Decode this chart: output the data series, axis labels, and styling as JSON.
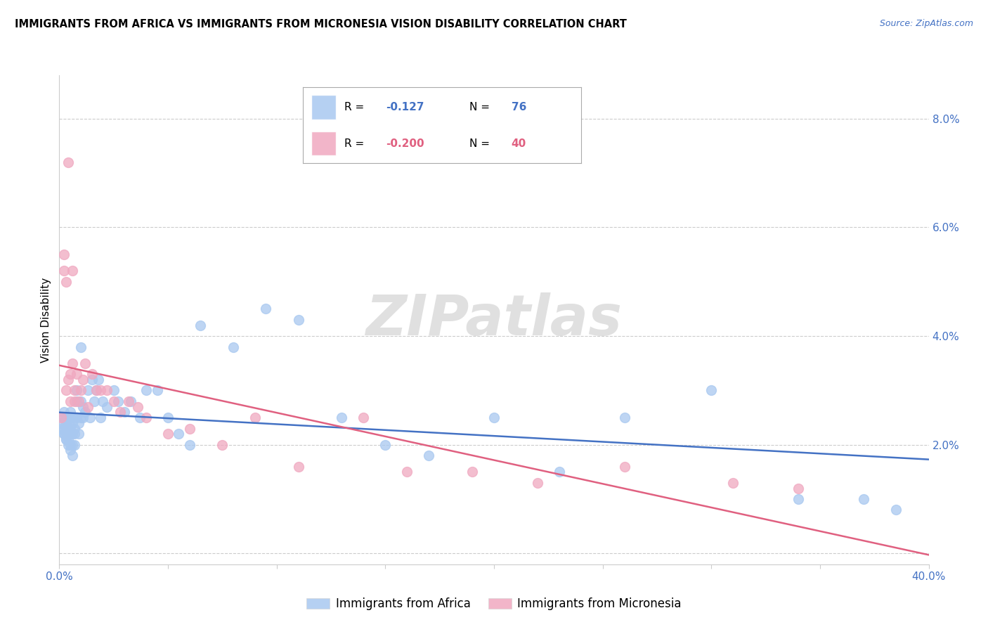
{
  "title": "IMMIGRANTS FROM AFRICA VS IMMIGRANTS FROM MICRONESIA VISION DISABILITY CORRELATION CHART",
  "source": "Source: ZipAtlas.com",
  "ylabel": "Vision Disability",
  "xlim": [
    0.0,
    0.4
  ],
  "ylim": [
    -0.002,
    0.088
  ],
  "yticks": [
    0.0,
    0.02,
    0.04,
    0.06,
    0.08
  ],
  "ytick_labels": [
    "",
    "2.0%",
    "4.0%",
    "6.0%",
    "8.0%"
  ],
  "africa_R": "-0.127",
  "africa_N": 76,
  "micronesia_R": "-0.200",
  "micronesia_N": 40,
  "africa_color": "#A8C8F0",
  "micronesia_color": "#F0A8C0",
  "africa_line_color": "#4472C4",
  "micronesia_line_color": "#E06080",
  "background_color": "#FFFFFF",
  "grid_color": "#CCCCCC",
  "tick_color": "#4472C4",
  "title_fontsize": 10.5,
  "axis_label_fontsize": 11,
  "tick_fontsize": 11,
  "watermark_text": "ZIPatlas",
  "watermark_fontsize": 58,
  "africa_x": [
    0.001,
    0.002,
    0.002,
    0.002,
    0.002,
    0.003,
    0.003,
    0.003,
    0.003,
    0.003,
    0.004,
    0.004,
    0.004,
    0.004,
    0.005,
    0.005,
    0.005,
    0.005,
    0.005,
    0.006,
    0.006,
    0.006,
    0.006,
    0.007,
    0.007,
    0.007,
    0.008,
    0.008,
    0.008,
    0.009,
    0.009,
    0.01,
    0.01,
    0.01,
    0.011,
    0.011,
    0.012,
    0.013,
    0.014,
    0.015,
    0.016,
    0.017,
    0.018,
    0.019,
    0.02,
    0.022,
    0.025,
    0.027,
    0.03,
    0.033,
    0.037,
    0.04,
    0.045,
    0.05,
    0.055,
    0.06,
    0.065,
    0.08,
    0.095,
    0.11,
    0.13,
    0.15,
    0.17,
    0.2,
    0.23,
    0.26,
    0.3,
    0.34,
    0.37,
    0.385,
    0.001,
    0.002,
    0.003,
    0.004,
    0.005,
    0.006
  ],
  "africa_y": [
    0.024,
    0.026,
    0.023,
    0.025,
    0.022,
    0.025,
    0.024,
    0.022,
    0.021,
    0.023,
    0.023,
    0.024,
    0.022,
    0.021,
    0.026,
    0.025,
    0.023,
    0.022,
    0.02,
    0.025,
    0.024,
    0.022,
    0.02,
    0.023,
    0.022,
    0.02,
    0.03,
    0.028,
    0.025,
    0.024,
    0.022,
    0.038,
    0.028,
    0.025,
    0.027,
    0.025,
    0.026,
    0.03,
    0.025,
    0.032,
    0.028,
    0.03,
    0.032,
    0.025,
    0.028,
    0.027,
    0.03,
    0.028,
    0.026,
    0.028,
    0.025,
    0.03,
    0.03,
    0.025,
    0.022,
    0.02,
    0.042,
    0.038,
    0.045,
    0.043,
    0.025,
    0.02,
    0.018,
    0.025,
    0.015,
    0.025,
    0.03,
    0.01,
    0.01,
    0.008,
    0.023,
    0.022,
    0.021,
    0.02,
    0.019,
    0.018
  ],
  "micronesia_x": [
    0.001,
    0.002,
    0.002,
    0.003,
    0.003,
    0.004,
    0.004,
    0.005,
    0.005,
    0.006,
    0.006,
    0.007,
    0.007,
    0.008,
    0.009,
    0.01,
    0.011,
    0.012,
    0.013,
    0.015,
    0.017,
    0.019,
    0.022,
    0.025,
    0.028,
    0.032,
    0.036,
    0.04,
    0.05,
    0.06,
    0.075,
    0.09,
    0.11,
    0.14,
    0.16,
    0.19,
    0.22,
    0.26,
    0.31,
    0.34
  ],
  "micronesia_y": [
    0.025,
    0.055,
    0.052,
    0.05,
    0.03,
    0.072,
    0.032,
    0.033,
    0.028,
    0.035,
    0.052,
    0.03,
    0.028,
    0.033,
    0.028,
    0.03,
    0.032,
    0.035,
    0.027,
    0.033,
    0.03,
    0.03,
    0.03,
    0.028,
    0.026,
    0.028,
    0.027,
    0.025,
    0.022,
    0.023,
    0.02,
    0.025,
    0.016,
    0.025,
    0.015,
    0.015,
    0.013,
    0.016,
    0.013,
    0.012
  ]
}
